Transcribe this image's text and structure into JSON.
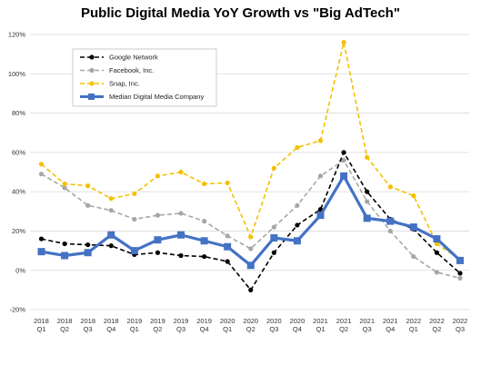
{
  "chart_data": {
    "type": "line",
    "title": "Public Digital Media YoY Growth vs \"Big AdTech\"",
    "xlabel": "",
    "ylabel": "",
    "ylim": [
      -20,
      120
    ],
    "y_ticks": [
      "-20%",
      "0%",
      "20%",
      "40%",
      "60%",
      "80%",
      "100%",
      "120%"
    ],
    "y_tick_values": [
      -20,
      0,
      20,
      40,
      60,
      80,
      100,
      120
    ],
    "grid": true,
    "legend_position": "top-left",
    "categories": [
      {
        "year": "2018",
        "quarter": "Q1"
      },
      {
        "year": "2018",
        "quarter": "Q2"
      },
      {
        "year": "2018",
        "quarter": "Q3"
      },
      {
        "year": "2018",
        "quarter": "Q4"
      },
      {
        "year": "2019",
        "quarter": "Q1"
      },
      {
        "year": "2019",
        "quarter": "Q2"
      },
      {
        "year": "2019",
        "quarter": "Q3"
      },
      {
        "year": "2019",
        "quarter": "Q4"
      },
      {
        "year": "2020",
        "quarter": "Q1"
      },
      {
        "year": "2020",
        "quarter": "Q2"
      },
      {
        "year": "2020",
        "quarter": "Q3"
      },
      {
        "year": "2020",
        "quarter": "Q4"
      },
      {
        "year": "2021",
        "quarter": "Q1"
      },
      {
        "year": "2021",
        "quarter": "Q2"
      },
      {
        "year": "2021",
        "quarter": "Q3"
      },
      {
        "year": "2021",
        "quarter": "Q4"
      },
      {
        "year": "2022",
        "quarter": "Q1"
      },
      {
        "year": "2022",
        "quarter": "Q2"
      },
      {
        "year": "2022",
        "quarter": "Q3"
      }
    ],
    "series": [
      {
        "name": "Google Network",
        "color": "#000000",
        "style": "dashed",
        "values": [
          16,
          13.5,
          13,
          12.5,
          8,
          9,
          7.5,
          7,
          4.5,
          -10,
          9,
          23,
          31,
          60,
          40,
          26,
          21,
          9,
          -1.5
        ]
      },
      {
        "name": "Facebook, Inc.",
        "color": "#a6a6a6",
        "style": "dashed",
        "values": [
          49,
          42,
          33,
          30.5,
          26,
          28,
          29,
          25,
          17.5,
          11,
          22,
          33,
          48,
          56,
          35,
          20,
          7,
          -1,
          -4
        ]
      },
      {
        "name": "Snap, Inc.",
        "color": "#f5c000",
        "style": "dashed",
        "values": [
          54,
          44,
          43,
          36.5,
          39,
          48,
          50,
          44,
          44.5,
          17,
          52,
          62.5,
          66,
          116,
          57.5,
          42.5,
          38,
          13.5,
          5.5
        ]
      },
      {
        "name": "Median Digital Media Company",
        "color": "#4472c4",
        "style": "solid",
        "values": [
          9.5,
          7.5,
          9,
          18,
          10,
          15.5,
          18,
          15,
          12,
          2.5,
          16.5,
          15,
          28,
          48,
          26.5,
          25,
          22,
          16,
          5
        ]
      }
    ]
  }
}
